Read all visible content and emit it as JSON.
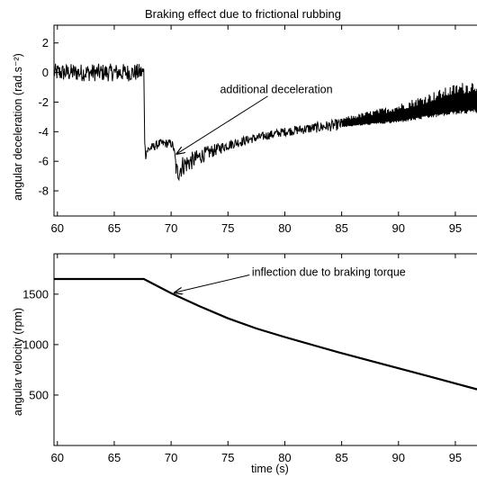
{
  "chart_data": [
    {
      "type": "line",
      "title": "Braking effect due to frictional rubbing",
      "xlabel": "",
      "ylabel": "angular deceleration (rad.s⁻²)",
      "xlim": [
        59.7,
        97.3
      ],
      "ylim": [
        -9.7,
        3.2
      ],
      "xticks": [
        60,
        65,
        70,
        75,
        80,
        85,
        90,
        95
      ],
      "yticks": [
        -8,
        -6,
        -4,
        -2,
        0,
        2
      ],
      "grid": false,
      "series": [
        {
          "style": "noisy",
          "color": "#000000",
          "x": [
            59.7,
            62,
            65,
            67.6,
            67.7,
            68,
            69,
            70,
            70.2,
            70.5,
            71,
            72,
            73,
            74,
            75,
            77,
            80,
            85,
            90,
            95,
            97.3
          ],
          "y": [
            0.0,
            0.0,
            0.0,
            0.0,
            -5.4,
            -5.2,
            -4.8,
            -4.8,
            -5.0,
            -6.8,
            -6.3,
            -5.9,
            -5.5,
            -5.2,
            -4.9,
            -4.5,
            -4.0,
            -3.5,
            -3.0,
            -2.2,
            -2.0
          ],
          "noise": [
            0.6,
            0.6,
            0.6,
            0.6,
            0.6,
            0.3,
            0.3,
            0.3,
            0.3,
            0.8,
            0.7,
            0.6,
            0.5,
            0.4,
            0.35,
            0.3,
            0.3,
            0.4,
            0.8,
            1.3,
            1.5
          ]
        }
      ],
      "annotations": [
        {
          "text": "additional deceleration",
          "text_x": 74.3,
          "text_y": -1.4,
          "arrow_from_x": 78.5,
          "arrow_from_y": -1.6,
          "arrow_to_x": 70.5,
          "arrow_to_y": -5.5
        }
      ]
    },
    {
      "type": "line",
      "title": "",
      "xlabel": "time (s)",
      "ylabel": "angular velocity (rpm)",
      "xlim": [
        59.7,
        97.3
      ],
      "ylim": [
        0,
        1900
      ],
      "xticks": [
        60,
        65,
        70,
        75,
        80,
        85,
        90,
        95
      ],
      "yticks": [
        500,
        1000,
        1500
      ],
      "grid": false,
      "series": [
        {
          "style": "smooth",
          "color": "#000000",
          "x": [
            59.7,
            62,
            65,
            67.6,
            70,
            72.5,
            75,
            77.5,
            80,
            82.5,
            85,
            87.5,
            90,
            92.5,
            95,
            97.3
          ],
          "y": [
            1650,
            1650,
            1650,
            1650,
            1510,
            1380,
            1260,
            1160,
            1075,
            995,
            915,
            840,
            765,
            690,
            615,
            545
          ]
        }
      ],
      "annotations": [
        {
          "text": "inflection due to braking torque",
          "text_x": 77.1,
          "text_y": 1680,
          "arrow_from_x": 76.9,
          "arrow_from_y": 1690,
          "arrow_to_x": 70.3,
          "arrow_to_y": 1515
        }
      ]
    }
  ]
}
